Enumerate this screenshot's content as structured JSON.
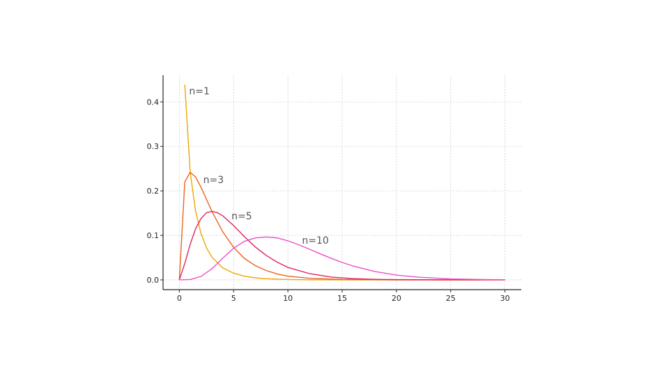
{
  "chart_data": {
    "type": "line",
    "title": "",
    "xlabel": "",
    "ylabel": "",
    "xlim": [
      -1.5,
      31.5
    ],
    "ylim": [
      -0.022,
      0.46
    ],
    "grid": true,
    "x_ticks": [
      0,
      5,
      10,
      15,
      20,
      25,
      30
    ],
    "x_tick_labels": [
      "0",
      "5",
      "10",
      "15",
      "20",
      "25",
      "30"
    ],
    "y_ticks": [
      0.0,
      0.1,
      0.2,
      0.3,
      0.4
    ],
    "y_tick_labels": [
      "0.0",
      "0.1",
      "0.2",
      "0.3",
      "0.4"
    ],
    "series": [
      {
        "name": "n=1",
        "color": "#f0a500",
        "label_anchor": [
          0.9,
          0.425
        ],
        "x": [
          0.5,
          1,
          1.5,
          2,
          2.5,
          3,
          4,
          5,
          6,
          7,
          8,
          10,
          12,
          15,
          20,
          25,
          30
        ],
        "y": [
          0.439,
          0.242,
          0.154,
          0.104,
          0.072,
          0.051,
          0.027,
          0.015,
          0.0083,
          0.0046,
          0.0026,
          0.0008,
          0.00025,
          4e-05,
          0.0,
          0.0,
          0.0
        ]
      },
      {
        "name": "n=3",
        "color": "#e8641e",
        "label_anchor": [
          2.2,
          0.225
        ],
        "x": [
          0,
          0.5,
          1,
          1.5,
          2,
          3,
          4,
          5,
          6,
          7,
          8,
          9,
          10,
          12,
          15,
          20,
          25,
          30
        ],
        "y": [
          0.0,
          0.22,
          0.242,
          0.231,
          0.208,
          0.154,
          0.108,
          0.073,
          0.048,
          0.032,
          0.021,
          0.0133,
          0.0085,
          0.0035,
          0.0009,
          0.0001,
          0.0,
          0.0
        ]
      },
      {
        "name": "n=5",
        "color": "#e0245e",
        "label_anchor": [
          4.8,
          0.144
        ],
        "x": [
          0,
          0.5,
          1,
          1.5,
          2,
          2.5,
          3,
          3.5,
          4,
          5,
          6,
          7,
          8,
          9,
          10,
          12,
          14,
          16,
          18,
          20,
          25,
          30
        ],
        "y": [
          0.0,
          0.037,
          0.08,
          0.115,
          0.138,
          0.151,
          0.154,
          0.151,
          0.144,
          0.122,
          0.097,
          0.074,
          0.055,
          0.04,
          0.028,
          0.014,
          0.0063,
          0.0028,
          0.0012,
          0.0005,
          5e-05,
          0.0
        ]
      },
      {
        "name": "n=10",
        "color": "#ee4fc4",
        "label_anchor": [
          11.3,
          0.089
        ],
        "x": [
          0,
          1,
          2,
          3,
          4,
          5,
          6,
          7,
          8,
          9,
          10,
          11,
          12,
          13,
          14,
          15,
          16,
          18,
          20,
          22,
          25,
          28,
          30
        ],
        "y": [
          0.0,
          0.0008,
          0.0077,
          0.0251,
          0.0488,
          0.0712,
          0.0867,
          0.0943,
          0.0965,
          0.0944,
          0.0877,
          0.0789,
          0.0688,
          0.0583,
          0.0483,
          0.0392,
          0.0312,
          0.0188,
          0.0108,
          0.006,
          0.0022,
          0.0007,
          0.0003
        ]
      }
    ]
  }
}
